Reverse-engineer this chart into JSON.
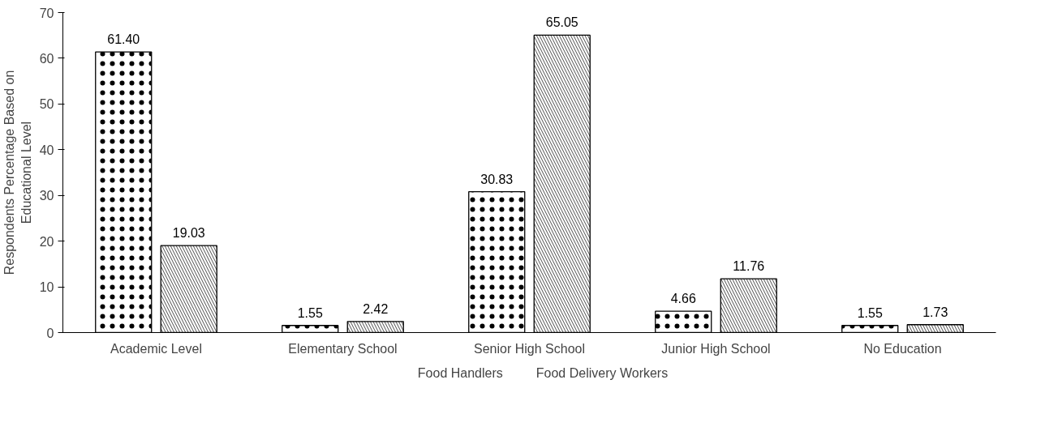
{
  "chart_data": {
    "type": "bar",
    "ylabel": "Respondents Percentage Based on\nEducational Level",
    "categories": [
      "Academic Level",
      "Elementary School",
      "Senior High School",
      "Junior High School",
      "No Education"
    ],
    "series": [
      {
        "name": "Food Handlers",
        "color": "#ffffff",
        "values": [
          61.4,
          1.55,
          30.83,
          4.66,
          1.55
        ],
        "value_labels": [
          "61.40",
          "1.55",
          "30.83",
          "4.66",
          "1.55"
        ]
      },
      {
        "name": "Food Delivery Workers",
        "color": "#ffffff",
        "values": [
          19.03,
          2.42,
          65.05,
          11.76,
          1.73
        ],
        "value_labels": [
          "19.03",
          "2.42",
          "65.05",
          "11.76",
          "1.73"
        ]
      }
    ],
    "ylim": [
      0,
      70
    ],
    "yticks": [
      0,
      10,
      20,
      30,
      40,
      50,
      60,
      70
    ],
    "grid": false,
    "legend": "bottom"
  }
}
